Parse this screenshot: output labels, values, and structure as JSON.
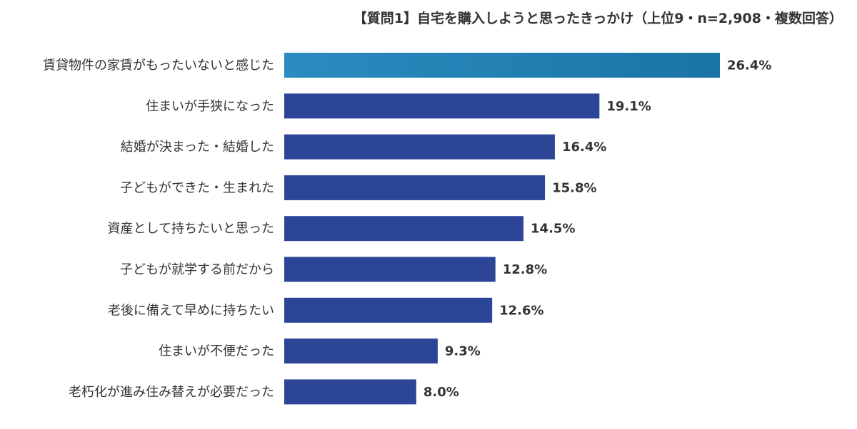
{
  "chart_data": {
    "type": "bar",
    "orientation": "horizontal",
    "title": "【質問1】自宅を購入しようと思ったきっかけ（上位9・n=2,908・複数回答）",
    "categories": [
      "賃貸物件の家賃がもったいないと感じた",
      "住まいが手狭になった",
      "結婚が決まった・結婚した",
      "子どもができた・生まれた",
      "資産として持ちたいと思った",
      "子どもが就学する前だから",
      "老後に備えて早めに持ちたい",
      "住まいが不便だった",
      "老朽化が進み住み替えが必要だった"
    ],
    "values": [
      26.4,
      19.1,
      16.4,
      15.8,
      14.5,
      12.8,
      12.6,
      9.3,
      8.0
    ],
    "value_labels": [
      "26.4%",
      "19.1%",
      "16.4%",
      "15.8%",
      "14.5%",
      "12.8%",
      "12.6%",
      "9.3%",
      "8.0%"
    ],
    "xlim": [
      0,
      26.4
    ],
    "grid": false,
    "legend": "none",
    "colors": {
      "highlight_start": "#2b8cbf",
      "highlight_end": "#1a74a6",
      "bar": "#2d4597",
      "text": "#333333"
    }
  }
}
